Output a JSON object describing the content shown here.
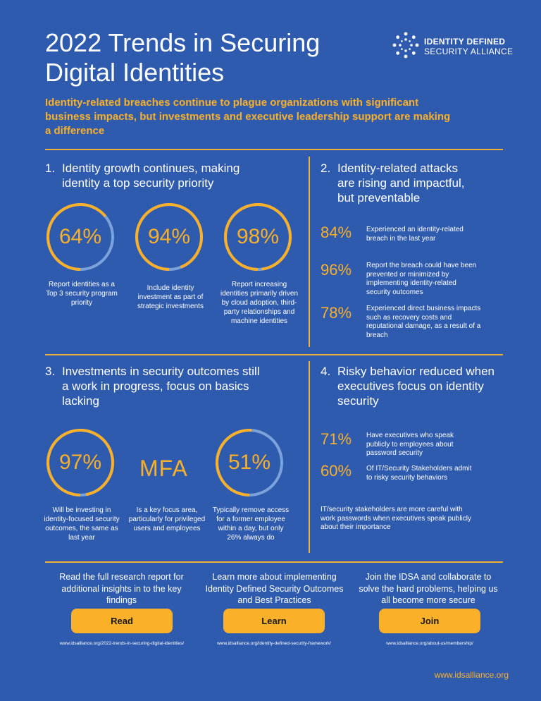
{
  "header": {
    "title": "2022 Trends in Securing Digital Identities",
    "logo_line1": "IDENTITY DEFINED",
    "logo_line2": "SECURITY ALLIANCE",
    "intro": "Identity-related breaches continue to plague organizations with significant business impacts, but investments and executive leadership support are making a difference"
  },
  "sections": {
    "s1": {
      "num": "1.",
      "title": "Identity growth continues, making identity a top security priority",
      "stats": [
        {
          "value": "64%",
          "fraction": 0.64,
          "caption": "Report identities as a Top 3 security program priority"
        },
        {
          "value": "94%",
          "fraction": 0.94,
          "caption": "Include identity investment as part of strategic investments"
        },
        {
          "value": "98%",
          "fraction": 0.98,
          "caption": "Report increasing identities primarily driven by cloud adoption, third-party relationships and machine identities"
        }
      ]
    },
    "s2": {
      "num": "2.",
      "title": "Identity-related attacks are rising and impactful, but preventable",
      "stats": [
        {
          "value": "84%",
          "text": "Experienced an identity-related breach in the last year"
        },
        {
          "value": "96%",
          "text": "Report the breach could have been prevented or minimized by implementing identity-related security outcomes"
        },
        {
          "value": "78%",
          "text": "Experienced direct business impacts such as recovery costs and reputational damage, as a result of a breach"
        }
      ]
    },
    "s3": {
      "num": "3.",
      "title": "Investments in security outcomes still a work in progress, focus on basics lacking",
      "stat1": {
        "value": "97%",
        "fraction": 0.97,
        "caption": "Will be investing in identity-focused security outcomes, the same as last year"
      },
      "mfa": {
        "value": "MFA",
        "caption": "Is a key focus area, particularly for privileged users and employees"
      },
      "stat2": {
        "value": "51%",
        "fraction": 0.51,
        "caption": "Typically remove access for a former employee within a day, but only 26% always do"
      }
    },
    "s4": {
      "num": "4.",
      "title": "Risky behavior reduced when executives focus on identity security",
      "stats": [
        {
          "value": "71%",
          "text": "Have executives who speak publicly to employees about password security"
        },
        {
          "value": "60%",
          "text": "Of IT/Security Stakeholders admit to risky security behaviors"
        }
      ],
      "note": "IT/security stakeholders are more careful with work passwords when executives speak publicly about their importance"
    }
  },
  "cta": [
    {
      "text": "Read the full research report for additional insights in to the key findings",
      "button": "Read",
      "url": "www.idsalliance.org/2022-trends-in-securing-digital-identities/"
    },
    {
      "text": "Learn more about implementing Identity Defined Security Outcomes and Best Practices",
      "button": "Learn",
      "url": "www.idsalliance.org/identity-defined-security-framework/"
    },
    {
      "text": "Join the IDSA and collaborate to solve the hard problems, helping us all become more secure",
      "button": "Join",
      "url": "www.idsalliance.org/about-us/membership/"
    }
  ],
  "footer": {
    "url": "www.idsalliance.org"
  },
  "colors": {
    "background": "#2F5BAF",
    "accent": "#FBB02A",
    "ring_track": "#7BA3DB"
  }
}
